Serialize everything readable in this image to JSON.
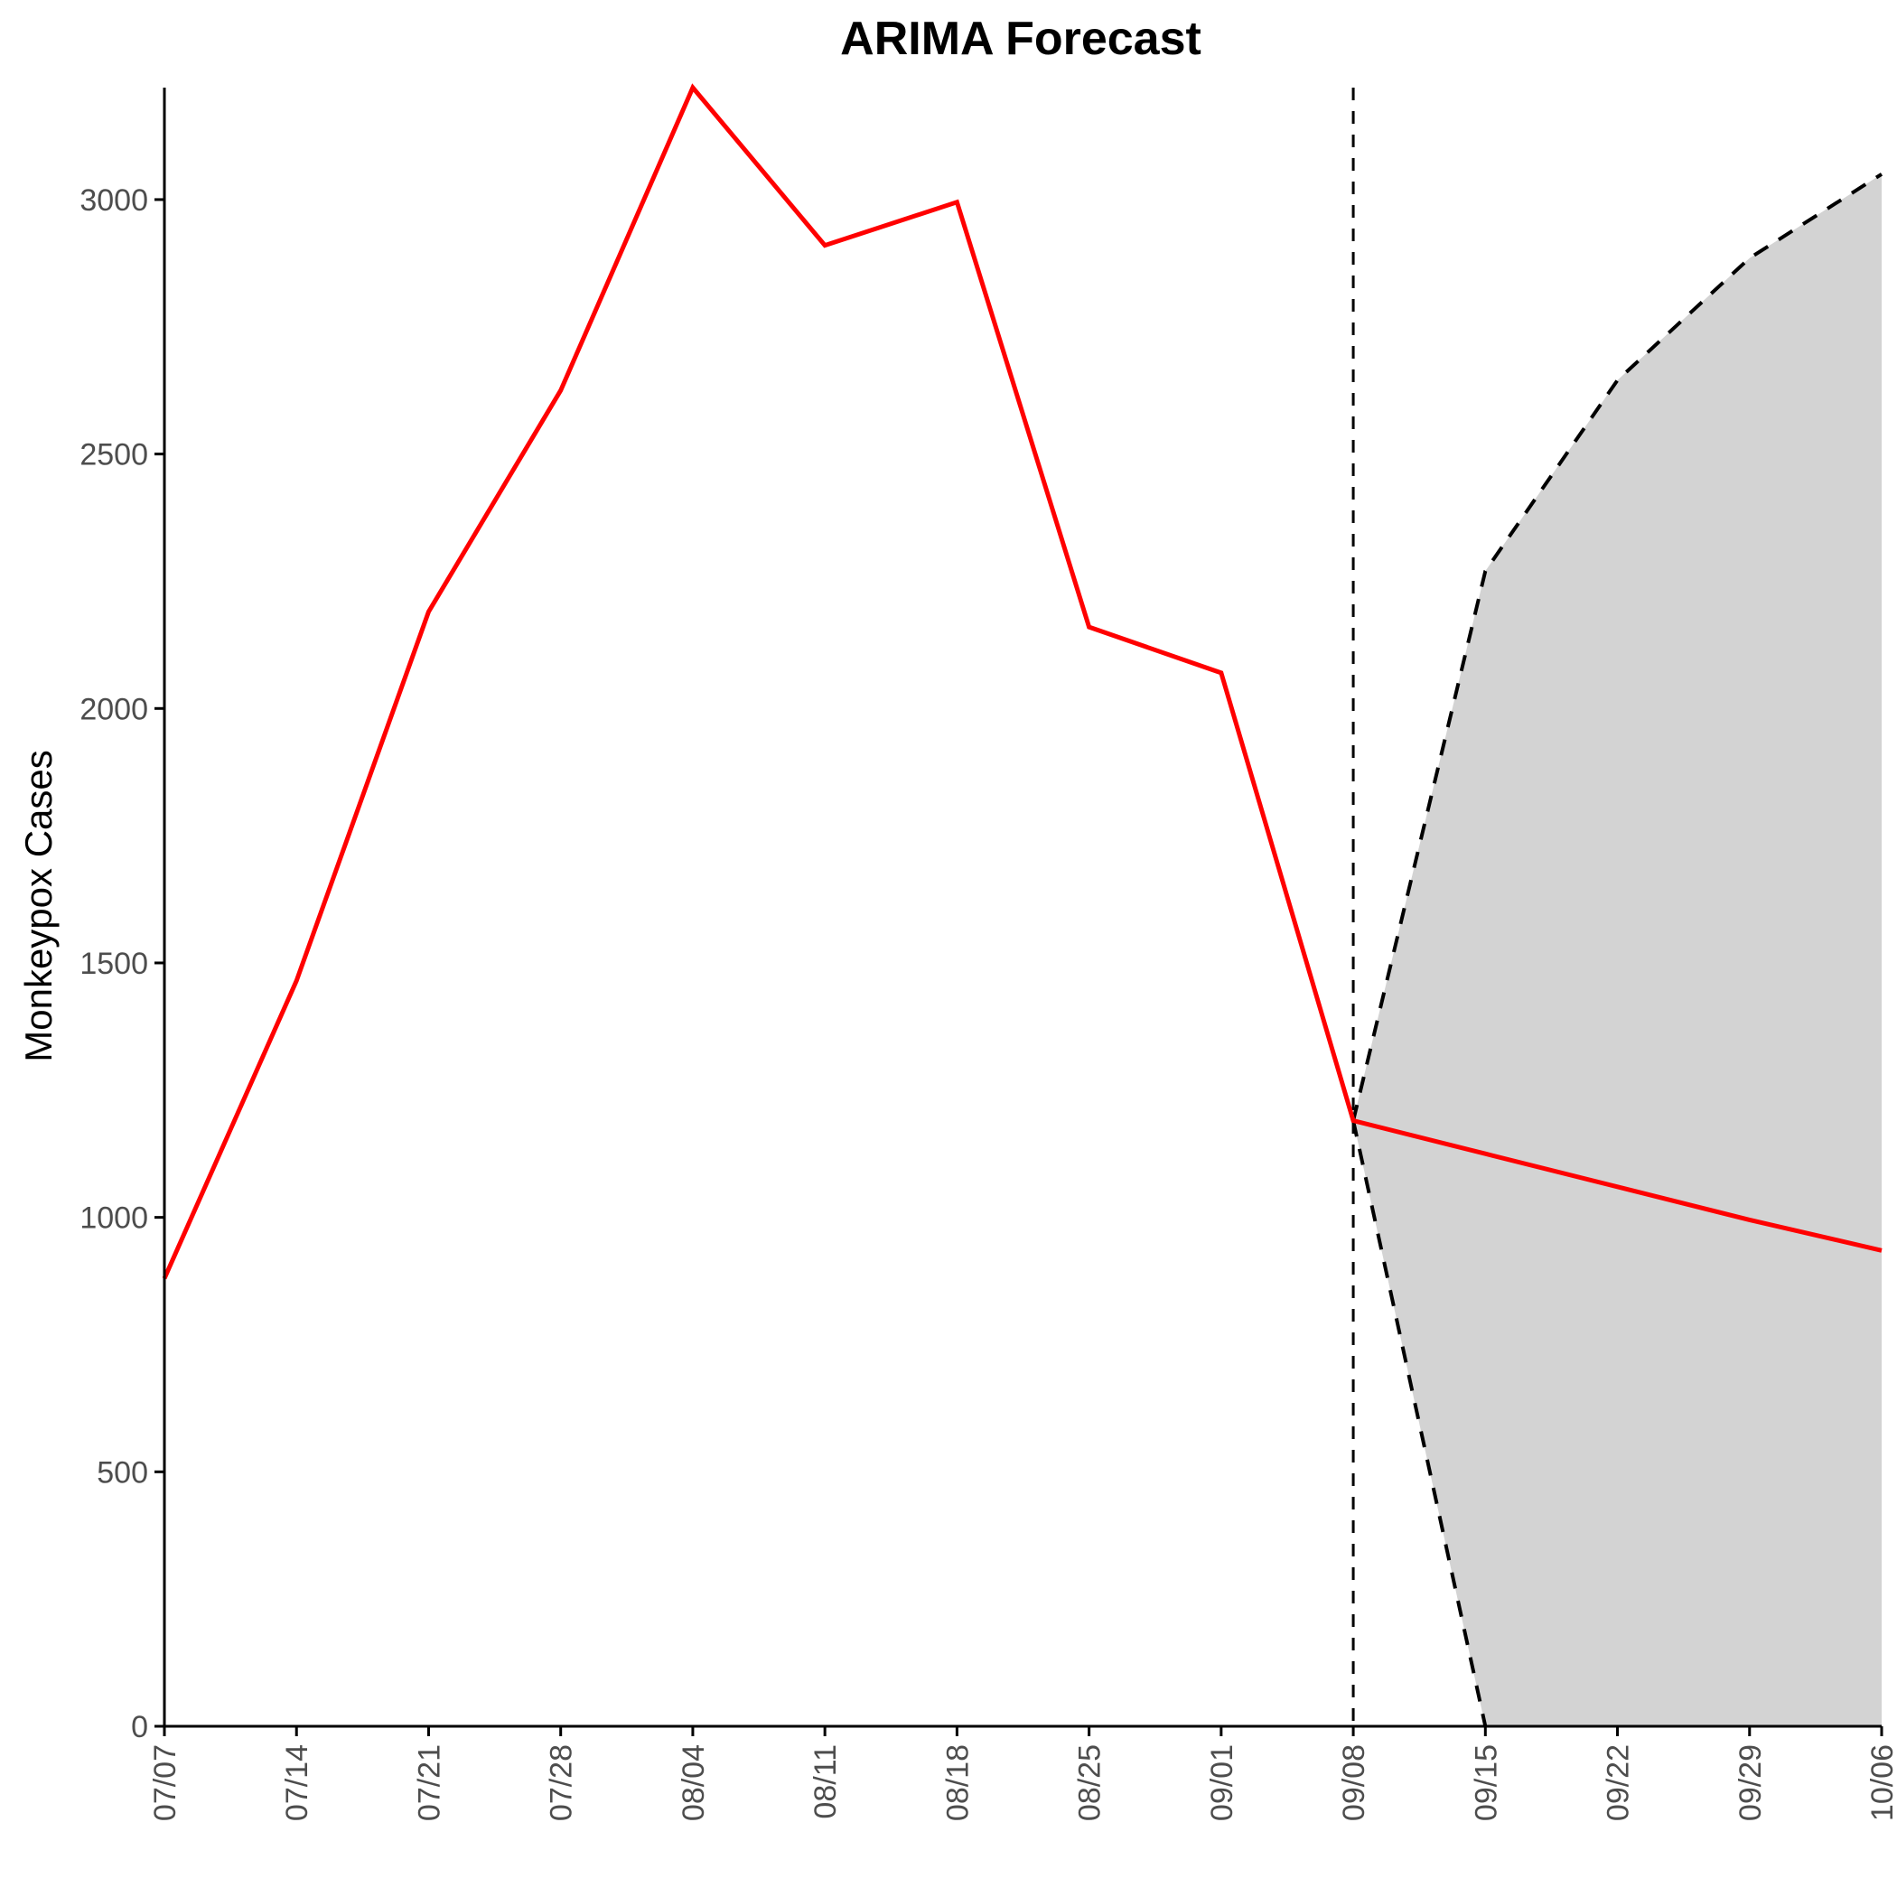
{
  "chart_data": {
    "type": "line",
    "title": "ARIMA Forecast",
    "xlabel": "",
    "ylabel": "Monkeypox Cases",
    "categories": [
      "07/07",
      "07/14",
      "07/21",
      "07/28",
      "08/04",
      "08/11",
      "08/18",
      "08/25",
      "09/01",
      "09/08",
      "09/15",
      "09/22",
      "09/29",
      "10/06"
    ],
    "ylim": [
      0,
      3220
    ],
    "yticks": [
      0,
      500,
      1000,
      1500,
      2000,
      2500,
      3000
    ],
    "grid": false,
    "forecast_start": "09/08",
    "series": [
      {
        "color": "#ff0000",
        "values": [
          880,
          1465,
          2190,
          2625,
          3220,
          2910,
          2995,
          2160,
          2070,
          1190,
          1125,
          1060,
          995,
          935
        ]
      }
    ],
    "interval": {
      "x": [
        "09/08",
        "09/15",
        "09/22",
        "09/29",
        "10/06"
      ],
      "lower": [
        1190,
        0,
        0,
        0,
        0
      ],
      "upper": [
        1190,
        2270,
        2645,
        2885,
        3050
      ],
      "fill": "#d3d3d3",
      "line_color": "#000000"
    }
  }
}
